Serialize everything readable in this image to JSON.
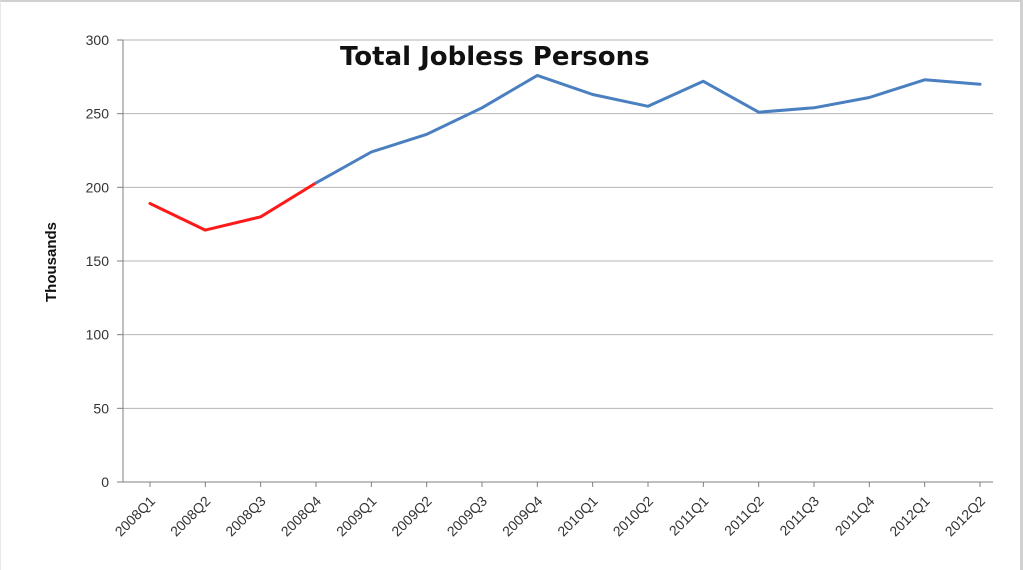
{
  "chart_data": {
    "type": "line",
    "title": "Total Jobless Persons",
    "xlabel": "",
    "ylabel": "Thousands",
    "ylim": [
      0,
      300
    ],
    "yticks": [
      0,
      50,
      100,
      150,
      200,
      250,
      300
    ],
    "grid": true,
    "categories": [
      "2008Q1",
      "2008Q2",
      "2008Q3",
      "2008Q4",
      "2009Q1",
      "2009Q2",
      "2009Q3",
      "2009Q4",
      "2010Q1",
      "2010Q2",
      "2011Q1",
      "2011Q2",
      "2011Q3",
      "2011Q4",
      "2012Q1",
      "2012Q2"
    ],
    "series": [
      {
        "values": [
          189,
          171,
          180,
          203,
          null,
          null,
          null,
          null,
          null,
          null,
          null,
          null,
          null,
          null,
          null,
          null
        ],
        "color": "#ff1a1a"
      },
      {
        "values": [
          null,
          null,
          null,
          203,
          224,
          236,
          254,
          276,
          263,
          255,
          272,
          251,
          254,
          261,
          273,
          270
        ],
        "color": "#4a7fc0"
      }
    ]
  }
}
